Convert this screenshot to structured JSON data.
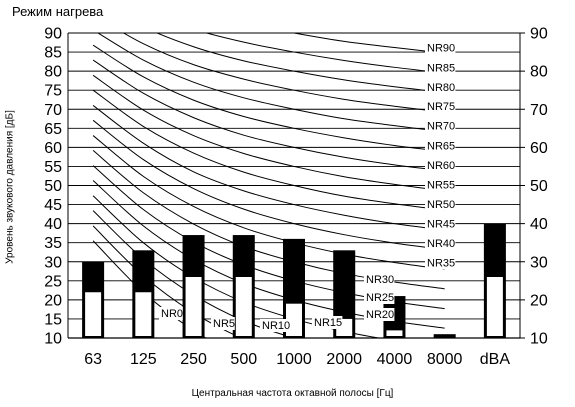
{
  "chart_data": {
    "type": "bar",
    "title": "Режим нагрева",
    "xlabel": "Центральная частота октавной полосы [Гц]",
    "ylabel": "Уровень звукового давления [дБ]",
    "ylim": [
      10,
      90
    ],
    "yticks": [
      10,
      15,
      20,
      25,
      30,
      35,
      40,
      45,
      50,
      55,
      60,
      65,
      70,
      75,
      80,
      85,
      90
    ],
    "yticks_right": [
      10,
      20,
      30,
      40,
      50,
      60,
      70,
      80,
      90
    ],
    "categories": [
      "63",
      "125",
      "250",
      "500",
      "1000",
      "2000",
      "4000",
      "8000",
      "dBA"
    ],
    "grid": true,
    "series": [
      {
        "values": [
          30,
          33,
          37,
          37,
          36,
          33,
          21,
          11,
          40
        ]
      },
      {
        "values": [
          22,
          22,
          26,
          26,
          19,
          15,
          12,
          0,
          26
        ]
      }
    ],
    "nr_curves": [
      {
        "name": "NR0",
        "values": [
          35.5,
          22,
          12,
          4.8,
          0,
          -3.5,
          -6.1,
          -8,
          null
        ]
      },
      {
        "name": "NR5",
        "values": [
          39.4,
          26.3,
          16.6,
          9.7,
          5,
          1.6,
          -1,
          -2.8,
          null
        ]
      },
      {
        "name": "NR10",
        "values": [
          43.4,
          30.7,
          21.3,
          14.5,
          10,
          6.6,
          4.2,
          2.3,
          null
        ]
      },
      {
        "name": "NR15",
        "values": [
          47.3,
          35,
          25.9,
          19.4,
          15,
          11.7,
          9.3,
          7.4,
          null
        ]
      },
      {
        "name": "NR20",
        "values": [
          51.3,
          39.4,
          30.6,
          24.3,
          20,
          16.8,
          14.4,
          12.6,
          null
        ]
      },
      {
        "name": "NR25",
        "values": [
          55.2,
          43.7,
          35.2,
          29.2,
          25,
          21.9,
          19.5,
          17.7,
          null
        ]
      },
      {
        "name": "NR30",
        "values": [
          59.2,
          48.1,
          39.9,
          34,
          30,
          26.9,
          24.7,
          22.9,
          null
        ]
      },
      {
        "name": "NR35",
        "values": [
          63.1,
          52.4,
          44.5,
          38.9,
          35,
          32,
          29.8,
          28,
          null
        ]
      },
      {
        "name": "NR40",
        "values": [
          67.1,
          56.8,
          49.2,
          43.8,
          40,
          37.1,
          34.9,
          33.2,
          null
        ]
      },
      {
        "name": "NR45",
        "values": [
          71,
          61.1,
          53.6,
          48.6,
          45,
          42.2,
          40,
          38.3,
          null
        ]
      },
      {
        "name": "NR50",
        "values": [
          75,
          65.5,
          58.5,
          53.5,
          50,
          47.2,
          45.2,
          43.5,
          null
        ]
      },
      {
        "name": "NR55",
        "values": [
          78.9,
          69.8,
          63.1,
          58.4,
          55,
          52.3,
          50.3,
          48.6,
          null
        ]
      },
      {
        "name": "NR60",
        "values": [
          82.9,
          74.2,
          67.8,
          63.2,
          60,
          57.4,
          55.4,
          53.8,
          null
        ]
      },
      {
        "name": "NR65",
        "values": [
          86.8,
          78.5,
          72.4,
          68.1,
          65,
          62.5,
          60.5,
          58.9,
          null
        ]
      },
      {
        "name": "NR70",
        "values": [
          90.8,
          82.9,
          77.1,
          73,
          70,
          67.5,
          65.7,
          64.1,
          null
        ]
      },
      {
        "name": "NR75",
        "values": [
          94.7,
          87.2,
          81.7,
          77.9,
          75,
          72.6,
          70.8,
          69.2,
          null
        ]
      },
      {
        "name": "NR80",
        "values": [
          98.7,
          91.6,
          86.4,
          82.7,
          80,
          77.7,
          75.9,
          74.4,
          null
        ]
      },
      {
        "name": "NR85",
        "values": [
          102.6,
          95.9,
          91,
          87.6,
          85,
          82.8,
          81,
          79.5,
          null
        ]
      },
      {
        "name": "NR90",
        "values": [
          106.6,
          100.3,
          95.7,
          92.5,
          90,
          87.8,
          86.2,
          84.7,
          null
        ]
      }
    ],
    "colors": {
      "bar_outer": "#000000",
      "bar_inner": "#ffffff",
      "curve": "#000000",
      "grid": "#000000"
    }
  }
}
